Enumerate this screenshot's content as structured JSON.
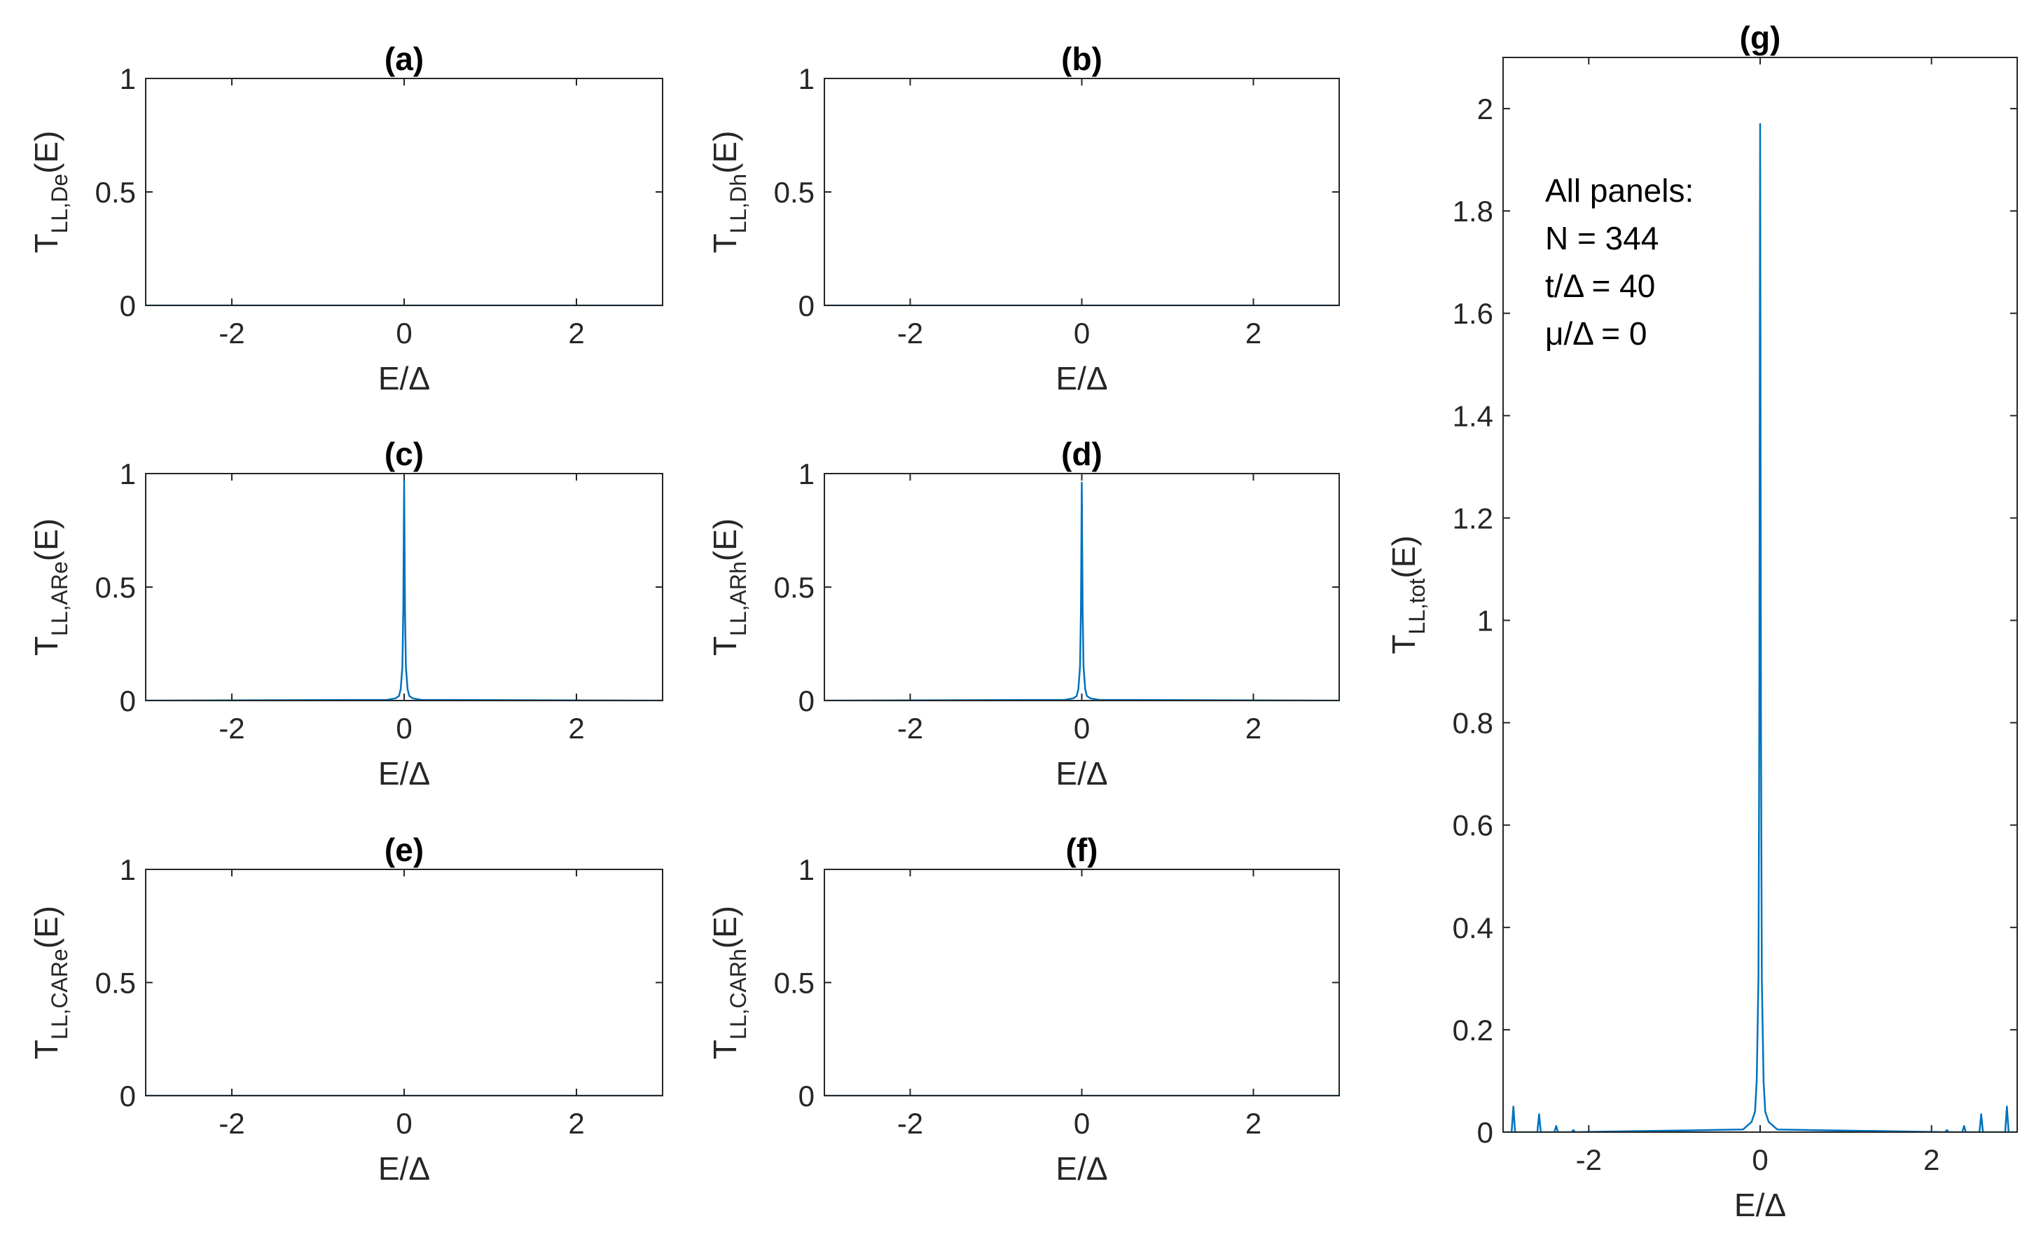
{
  "annotation": {
    "lines": [
      "All panels:",
      "N = 344",
      "t/Δ = 40",
      "μ/Δ = 0"
    ]
  },
  "chart_data": [
    {
      "type": "line",
      "panel": "a",
      "title": "(a)",
      "ylabel_main": "T",
      "ylabel_sub": "LL,De",
      "ylabel_tail": "(E)",
      "xlabel": "E/Δ",
      "xlim": [
        -3,
        3
      ],
      "ylim": [
        0,
        1
      ],
      "xticks": [
        -2,
        0,
        2
      ],
      "yticks": [
        0,
        0.5,
        1
      ],
      "series": [
        {
          "color": "#0072BD",
          "x": [
            -3,
            3
          ],
          "y": [
            0,
            0
          ]
        }
      ]
    },
    {
      "type": "line",
      "panel": "b",
      "title": "(b)",
      "ylabel_main": "T",
      "ylabel_sub": "LL,Dh",
      "ylabel_tail": "(E)",
      "xlabel": "E/Δ",
      "xlim": [
        -3,
        3
      ],
      "ylim": [
        0,
        1
      ],
      "xticks": [
        -2,
        0,
        2
      ],
      "yticks": [
        0,
        0.5,
        1
      ],
      "series": [
        {
          "color": "#0072BD",
          "x": [
            -3,
            3
          ],
          "y": [
            0,
            0
          ]
        }
      ]
    },
    {
      "type": "line",
      "panel": "c",
      "title": "(c)",
      "ylabel_main": "T",
      "ylabel_sub": "LL,ARe",
      "ylabel_tail": "(E)",
      "xlabel": "E/Δ",
      "xlim": [
        -3,
        3
      ],
      "ylim": [
        0,
        1
      ],
      "xticks": [
        -2,
        0,
        2
      ],
      "yticks": [
        0,
        0.5,
        1
      ],
      "series": [
        {
          "color": "#0072BD",
          "x": [
            -3,
            -0.2,
            -0.1,
            -0.06,
            -0.04,
            -0.02,
            -0.01,
            0,
            0.01,
            0.02,
            0.04,
            0.06,
            0.1,
            0.2,
            3
          ],
          "y": [
            0,
            0.003,
            0.01,
            0.02,
            0.05,
            0.15,
            0.4,
            0.97,
            0.4,
            0.15,
            0.05,
            0.02,
            0.01,
            0.003,
            0
          ]
        }
      ]
    },
    {
      "type": "line",
      "panel": "d",
      "title": "(d)",
      "ylabel_main": "T",
      "ylabel_sub": "LL,ARh",
      "ylabel_tail": "(E)",
      "xlabel": "E/Δ",
      "xlim": [
        -3,
        3
      ],
      "ylim": [
        0,
        1
      ],
      "xticks": [
        -2,
        0,
        2
      ],
      "yticks": [
        0,
        0.5,
        1
      ],
      "series": [
        {
          "color": "#0072BD",
          "x": [
            -3,
            -0.2,
            -0.1,
            -0.06,
            -0.04,
            -0.02,
            -0.01,
            0,
            0.01,
            0.02,
            0.04,
            0.06,
            0.1,
            0.2,
            3
          ],
          "y": [
            0,
            0.003,
            0.01,
            0.02,
            0.05,
            0.15,
            0.4,
            0.96,
            0.4,
            0.15,
            0.05,
            0.02,
            0.01,
            0.003,
            0
          ]
        }
      ]
    },
    {
      "type": "line",
      "panel": "e",
      "title": "(e)",
      "ylabel_main": "T",
      "ylabel_sub": "LL,CARe",
      "ylabel_tail": "(E)",
      "xlabel": "E/Δ",
      "xlim": [
        -3,
        3
      ],
      "ylim": [
        0,
        1
      ],
      "xticks": [
        -2,
        0,
        2
      ],
      "yticks": [
        0,
        0.5,
        1
      ],
      "series": [
        {
          "color": "#0072BD",
          "x": [
            -3,
            3
          ],
          "y": [
            0,
            0
          ]
        }
      ]
    },
    {
      "type": "line",
      "panel": "f",
      "title": "(f)",
      "ylabel_main": "T",
      "ylabel_sub": "LL,CARh",
      "ylabel_tail": "(E)",
      "xlabel": "E/Δ",
      "xlim": [
        -3,
        3
      ],
      "ylim": [
        0,
        1
      ],
      "xticks": [
        -2,
        0,
        2
      ],
      "yticks": [
        0,
        0.5,
        1
      ],
      "series": [
        {
          "color": "#0072BD",
          "x": [
            -3,
            3
          ],
          "y": [
            0,
            0
          ]
        }
      ]
    },
    {
      "type": "line",
      "panel": "g",
      "title": "(g)",
      "ylabel_main": "T",
      "ylabel_sub": "LL,tot",
      "ylabel_tail": "(E)",
      "xlabel": "E/Δ",
      "xlim": [
        -3,
        3
      ],
      "ylim": [
        0,
        2.1
      ],
      "xticks": [
        -2,
        0,
        2
      ],
      "yticks": [
        0,
        0.2,
        0.4,
        0.6,
        0.8,
        1,
        1.2,
        1.4,
        1.6,
        1.8,
        2
      ],
      "series": [
        {
          "color": "#0072BD",
          "x": [
            -3,
            -2.9,
            -2.88,
            -2.86,
            -2.6,
            -2.58,
            -2.56,
            -2.4,
            -2.38,
            -2.36,
            -2.2,
            -2.18,
            -2.16,
            -0.2,
            -0.1,
            -0.06,
            -0.04,
            -0.02,
            -0.01,
            0,
            0.01,
            0.02,
            0.04,
            0.06,
            0.1,
            0.2,
            2.16,
            2.18,
            2.2,
            2.36,
            2.38,
            2.4,
            2.56,
            2.58,
            2.6,
            2.86,
            2.88,
            2.9,
            3
          ],
          "y": [
            0,
            0,
            0.05,
            0,
            0,
            0.035,
            0,
            0,
            0.012,
            0,
            0,
            0.004,
            0,
            0.005,
            0.02,
            0.04,
            0.1,
            0.3,
            0.8,
            1.97,
            0.8,
            0.3,
            0.1,
            0.04,
            0.02,
            0.005,
            0,
            0.004,
            0,
            0,
            0.012,
            0,
            0,
            0.035,
            0,
            0,
            0.05,
            0,
            0
          ]
        }
      ]
    }
  ]
}
